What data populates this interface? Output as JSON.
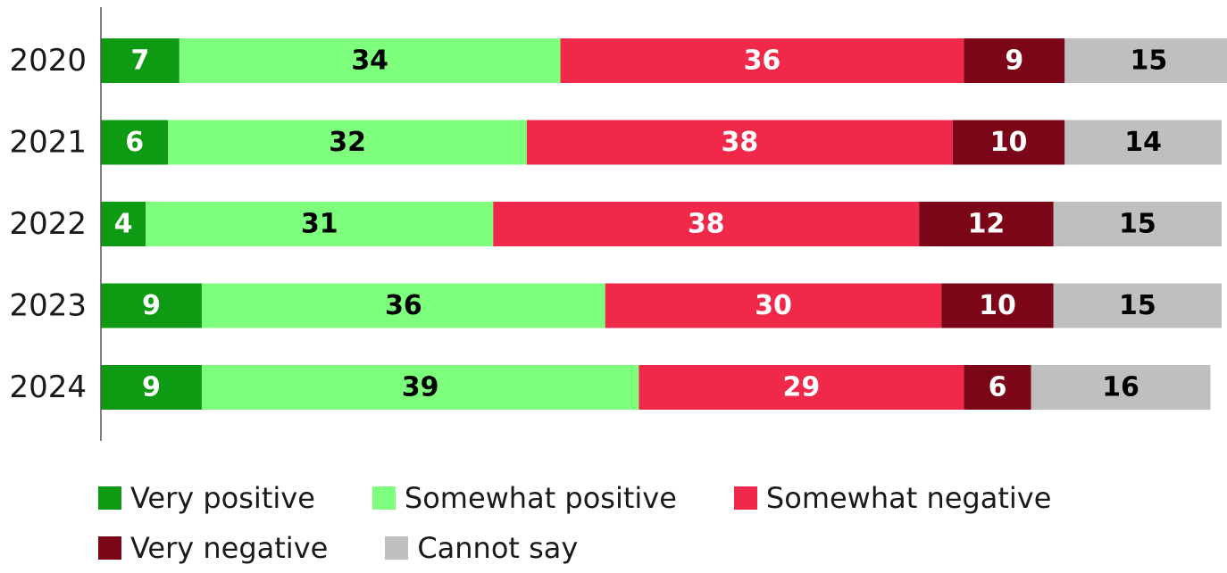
{
  "chart_data": {
    "type": "bar",
    "orientation": "horizontal",
    "stacked": true,
    "categories": [
      "2020",
      "2021",
      "2022",
      "2023",
      "2024"
    ],
    "series": [
      {
        "name": "Very positive",
        "color": "#0e9a12",
        "label_color": "#ffffff",
        "values": [
          7,
          6,
          4,
          9,
          9
        ]
      },
      {
        "name": "Somewhat positive",
        "color": "#7dff7d",
        "label_color": "#000000",
        "values": [
          34,
          32,
          31,
          36,
          39
        ]
      },
      {
        "name": "Somewhat negative",
        "color": "#f0294a",
        "label_color": "#ffffff",
        "values": [
          36,
          38,
          38,
          30,
          29
        ]
      },
      {
        "name": "Very negative",
        "color": "#7a0618",
        "label_color": "#ffffff",
        "values": [
          9,
          10,
          12,
          10,
          6
        ]
      },
      {
        "name": "Cannot say",
        "color": "#bfbfbf",
        "label_color": "#000000",
        "values": [
          15,
          14,
          15,
          15,
          16
        ]
      }
    ],
    "title": "",
    "xlabel": "",
    "ylabel": "",
    "grid": false,
    "legend_position": "bottom"
  }
}
